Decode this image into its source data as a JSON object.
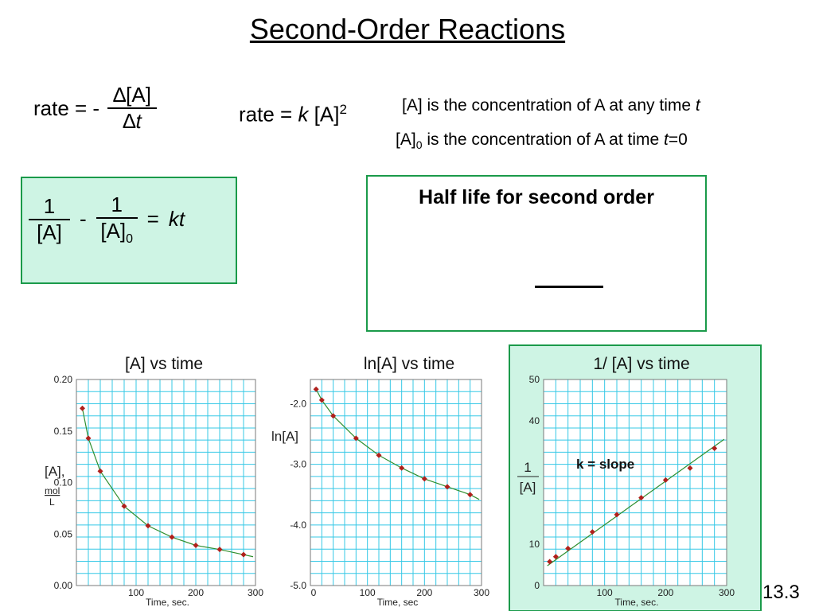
{
  "title": "Second-Order Reactions",
  "eq_rate_diff": {
    "lhs": "rate = -",
    "numerator": "∆[A]",
    "denominator_delta": "∆",
    "denominator_var": "t"
  },
  "eq_rate_law": {
    "prefix": "rate = ",
    "k": "k",
    "conc": " [A]",
    "exp": "2"
  },
  "notes": {
    "line1": "[A] is the concentration of A at any time ",
    "line1_var": "t",
    "line2_a": "[A]",
    "line2_sub": "0",
    "line2_b": " is the concentration of A at time ",
    "line2_var": "t",
    "line2_c": "=0"
  },
  "integrated": {
    "num1": "1",
    "den1": "[A]",
    "minus": "-",
    "num2": "1",
    "den2": "[A]",
    "den2_sub": "0",
    "equals": "=",
    "rhs": "kt"
  },
  "half_life": {
    "heading": "Half life for second order"
  },
  "page_number": "13.3",
  "colors": {
    "box_fill": "#cef4e4",
    "box_border": "#1a9a4a",
    "grid": "#35c8e6",
    "point": "#b0201c",
    "fit": "#2f8f2f"
  },
  "chart_data": [
    {
      "type": "line",
      "title": "[A]  vs time",
      "ylabel": "[A],",
      "ylabel_units_num": "mol",
      "ylabel_units_den": "L",
      "xlabel": "Time, sec.",
      "xlim": [
        0,
        300
      ],
      "ylim": [
        0,
        0.2
      ],
      "x_ticks": [
        "100",
        "200",
        "300"
      ],
      "y_ticks": [
        "0.00",
        "0.05",
        "0.10",
        "0.15",
        "0.20"
      ],
      "x": [
        10,
        20,
        40,
        80,
        120,
        160,
        200,
        240,
        280
      ],
      "values": [
        0.172,
        0.143,
        0.111,
        0.077,
        0.058,
        0.047,
        0.039,
        0.035,
        0.03
      ],
      "grid": true
    },
    {
      "type": "line",
      "title": "ln[A] vs time",
      "ylabel": "ln[A]",
      "xlabel": "Time, sec",
      "xlim": [
        0,
        300
      ],
      "ylim": [
        -5,
        -1.6
      ],
      "x_ticks": [
        "0",
        "100",
        "200",
        "300"
      ],
      "y_ticks": [
        "-2.0",
        "-3.0",
        "-4.0",
        "-5.0"
      ],
      "x": [
        10,
        20,
        40,
        80,
        120,
        160,
        200,
        240,
        280
      ],
      "values": [
        -1.76,
        -1.94,
        -2.2,
        -2.57,
        -2.85,
        -3.06,
        -3.24,
        -3.37,
        -3.5
      ],
      "grid": true
    },
    {
      "type": "line",
      "title": "1/ [A] vs time",
      "ylabel_num": "1",
      "ylabel_den": "[A]",
      "xlabel": "Time, sec.",
      "annotation": "k = slope",
      "xlim": [
        0,
        300
      ],
      "ylim": [
        0,
        50
      ],
      "x_ticks": [
        "100",
        "200",
        "300"
      ],
      "y_ticks": [
        "0",
        "10",
        "40",
        "50"
      ],
      "y_tick_values": [
        0,
        10,
        40,
        50
      ],
      "x": [
        10,
        20,
        40,
        80,
        120,
        160,
        200,
        240,
        280
      ],
      "values": [
        5.8,
        7.0,
        9.0,
        13.0,
        17.2,
        21.3,
        25.6,
        28.5,
        33.3
      ],
      "fit": true,
      "grid": true
    }
  ]
}
